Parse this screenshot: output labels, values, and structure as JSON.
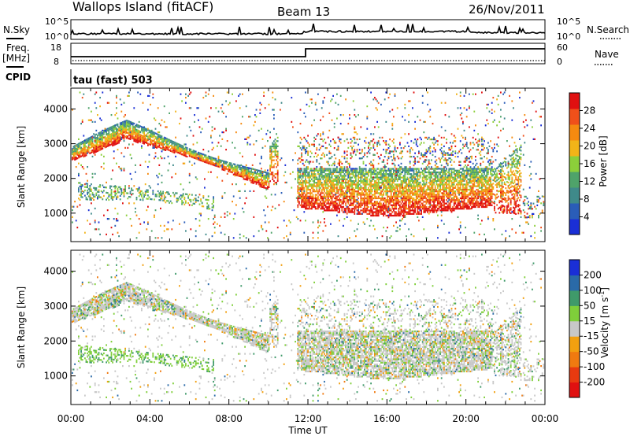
{
  "header": {
    "station": "Wallops Island (fitACF)",
    "beam": "Beam 13",
    "date": "26/Nov/2011"
  },
  "labels": {
    "nsky": "N.Sky",
    "nsearch": "N.Search",
    "freq_line1": "Freq.",
    "freq_line2": "[MHz]",
    "nave": "Nave",
    "cpid": "CPID",
    "cpid_value": "tau (fast) 503",
    "nsky_tick_top": "10^5",
    "nsky_tick_bottom": "10^0",
    "nsearch_tick_top": "10^5",
    "nsearch_tick_bottom": "10^0",
    "freq_tick_top": "18",
    "freq_tick_bottom": "8",
    "nave_tick_top": "60",
    "nave_tick_bottom": "0"
  },
  "colors": {
    "power": [
      "#1a2fd6",
      "#2a5db8",
      "#3f8a8a",
      "#4fa36a",
      "#8ccf3a",
      "#f2b418",
      "#f58a10",
      "#f0501a",
      "#e01010"
    ],
    "velocity": [
      "#1a2fd6",
      "#2a6aa8",
      "#3f9a6a",
      "#7fcf3a",
      "#c8c8c8",
      "#f2a010",
      "#f07a10",
      "#e83a10",
      "#e01010"
    ]
  },
  "chart_data": [
    {
      "type": "heatmap",
      "title": "Power",
      "ylabel": "Slant Range [km]",
      "xlabel": "Time UT",
      "x_ticks": [
        "00:00",
        "04:00",
        "08:00",
        "12:00",
        "16:00",
        "20:00",
        "00:00"
      ],
      "x_range_hours": [
        0,
        24
      ],
      "y_ticks": [
        "1000",
        "2000",
        "3000",
        "4000"
      ],
      "y_range_km": [
        180,
        4600
      ],
      "colorbar": {
        "label": "Power [dB]",
        "ticks": [
          "4",
          "8",
          "12",
          "16",
          "20",
          "24",
          "28"
        ],
        "range": [
          0,
          32
        ]
      }
    },
    {
      "type": "heatmap",
      "title": "Velocity",
      "ylabel": "Slant Range [km]",
      "xlabel": "Time UT",
      "x_ticks": [
        "00:00",
        "04:00",
        "08:00",
        "12:00",
        "16:00",
        "20:00",
        "00:00"
      ],
      "x_range_hours": [
        0,
        24
      ],
      "y_ticks": [
        "1000",
        "2000",
        "3000",
        "4000"
      ],
      "y_range_km": [
        180,
        4600
      ],
      "colorbar": {
        "label": "Velocity [m s^-1]",
        "ticks": [
          "200",
          "100",
          "50",
          "15",
          "-15",
          "-50",
          "-100",
          "-200"
        ]
      }
    }
  ],
  "x_axis_title": "Time UT"
}
